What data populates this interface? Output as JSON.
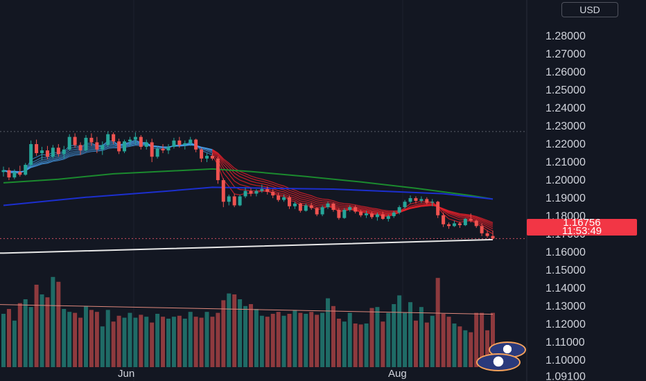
{
  "header": {
    "currency": "USD"
  },
  "price_label": {
    "price": "1.16756",
    "countdown": "11:53:49"
  },
  "time_axis": {
    "labels": [
      "Jun",
      "Aug"
    ]
  },
  "colors": {
    "background": "#131722",
    "bull": "#26a69a",
    "bear": "#ef5350",
    "volume_bull": "#1f6b66",
    "volume_bear": "#8e3a3e",
    "sma_long": "#1b8a2e",
    "sma_longest": "#1c2fcf",
    "baseline": "#e8e8e8",
    "price_label": "#f23645",
    "ribbon_up": "#4aa3f0",
    "ribbon_down": "#e8202a"
  },
  "chart_data": {
    "type": "candlestick",
    "instrument_currency": "USD",
    "y_axis": {
      "ylim": [
        1.0885,
        1.3
      ],
      "tick_labels": [
        "1.28000",
        "1.27000",
        "1.26000",
        "1.25000",
        "1.24000",
        "1.23000",
        "1.22000",
        "1.21000",
        "1.20000",
        "1.19000",
        "1.18000",
        "1.17000",
        "1.16000",
        "1.15000",
        "1.14000",
        "1.13000",
        "1.12000",
        "1.11000",
        "1.10000",
        "1.09100"
      ]
    },
    "x_axis": {
      "tick_labels": [
        "Jun",
        "Aug"
      ]
    },
    "grid": true,
    "dashed_level": 1.227,
    "last_price": 1.16756,
    "countdown": "11:53:49",
    "ohlc": [
      [
        1.2045,
        1.2075,
        1.202,
        1.2055
      ],
      [
        1.2055,
        1.207,
        1.2,
        1.2015
      ],
      [
        1.2015,
        1.206,
        1.2005,
        1.2045
      ],
      [
        1.2045,
        1.208,
        1.202,
        1.203
      ],
      [
        1.203,
        1.2095,
        1.2025,
        1.2085
      ],
      [
        1.2085,
        1.222,
        1.2075,
        1.22
      ],
      [
        1.22,
        1.2225,
        1.2135,
        1.215
      ],
      [
        1.215,
        1.2185,
        1.211,
        1.2165
      ],
      [
        1.2165,
        1.219,
        1.2115,
        1.213
      ],
      [
        1.213,
        1.2195,
        1.212,
        1.218
      ],
      [
        1.218,
        1.22,
        1.213,
        1.2145
      ],
      [
        1.2145,
        1.219,
        1.212,
        1.217
      ],
      [
        1.217,
        1.2255,
        1.2165,
        1.224
      ],
      [
        1.224,
        1.226,
        1.218,
        1.2195
      ],
      [
        1.2195,
        1.221,
        1.214,
        1.2165
      ],
      [
        1.2165,
        1.225,
        1.216,
        1.2235
      ],
      [
        1.2235,
        1.226,
        1.219,
        1.221
      ],
      [
        1.221,
        1.224,
        1.215,
        1.217
      ],
      [
        1.217,
        1.2215,
        1.214,
        1.2195
      ],
      [
        1.2195,
        1.227,
        1.2185,
        1.2255
      ],
      [
        1.2255,
        1.2265,
        1.22,
        1.2215
      ],
      [
        1.2215,
        1.223,
        1.2145,
        1.216
      ],
      [
        1.216,
        1.2225,
        1.215,
        1.2215
      ],
      [
        1.2215,
        1.224,
        1.219,
        1.2225
      ],
      [
        1.2225,
        1.2265,
        1.22,
        1.224
      ],
      [
        1.224,
        1.225,
        1.217,
        1.2185
      ],
      [
        1.2185,
        1.2225,
        1.217,
        1.221
      ],
      [
        1.221,
        1.223,
        1.21,
        1.213
      ],
      [
        1.213,
        1.219,
        1.212,
        1.2175
      ],
      [
        1.2175,
        1.22,
        1.215,
        1.2165
      ],
      [
        1.2165,
        1.22,
        1.2145,
        1.2185
      ],
      [
        1.2185,
        1.2235,
        1.2175,
        1.222
      ],
      [
        1.222,
        1.224,
        1.218,
        1.2195
      ],
      [
        1.2195,
        1.222,
        1.217,
        1.2205
      ],
      [
        1.2205,
        1.224,
        1.219,
        1.2225
      ],
      [
        1.2225,
        1.223,
        1.2155,
        1.217
      ],
      [
        1.217,
        1.218,
        1.21,
        1.212
      ],
      [
        1.212,
        1.215,
        1.21,
        1.2135
      ],
      [
        1.2135,
        1.215,
        1.211,
        1.212
      ],
      [
        1.212,
        1.213,
        1.198,
        1.2
      ],
      [
        1.2,
        1.201,
        1.185,
        1.188
      ],
      [
        1.188,
        1.192,
        1.186,
        1.191
      ],
      [
        1.191,
        1.1925,
        1.185,
        1.186
      ],
      [
        1.186,
        1.192,
        1.1855,
        1.191
      ],
      [
        1.191,
        1.196,
        1.19,
        1.194
      ],
      [
        1.194,
        1.1955,
        1.191,
        1.1925
      ],
      [
        1.1925,
        1.195,
        1.191,
        1.194
      ],
      [
        1.194,
        1.1975,
        1.193,
        1.195
      ],
      [
        1.195,
        1.1965,
        1.192,
        1.1935
      ],
      [
        1.1935,
        1.195,
        1.19,
        1.1915
      ],
      [
        1.1915,
        1.193,
        1.188,
        1.189
      ],
      [
        1.189,
        1.192,
        1.188,
        1.1905
      ],
      [
        1.1905,
        1.1915,
        1.184,
        1.1855
      ],
      [
        1.1855,
        1.188,
        1.184,
        1.187
      ],
      [
        1.187,
        1.1875,
        1.182,
        1.183
      ],
      [
        1.183,
        1.187,
        1.1825,
        1.186
      ],
      [
        1.186,
        1.1875,
        1.1835,
        1.1845
      ],
      [
        1.1845,
        1.185,
        1.18,
        1.181
      ],
      [
        1.181,
        1.186,
        1.18,
        1.185
      ],
      [
        1.185,
        1.188,
        1.184,
        1.187
      ],
      [
        1.187,
        1.1875,
        1.1825,
        1.1835
      ],
      [
        1.1835,
        1.1845,
        1.178,
        1.179
      ],
      [
        1.179,
        1.1845,
        1.1785,
        1.1835
      ],
      [
        1.1835,
        1.186,
        1.1825,
        1.185
      ],
      [
        1.185,
        1.186,
        1.1815,
        1.1825
      ],
      [
        1.1825,
        1.1835,
        1.1795,
        1.1805
      ],
      [
        1.1805,
        1.183,
        1.179,
        1.1815
      ],
      [
        1.1815,
        1.1825,
        1.1785,
        1.1795
      ],
      [
        1.1795,
        1.182,
        1.1775,
        1.181
      ],
      [
        1.181,
        1.1825,
        1.178,
        1.1785
      ],
      [
        1.1785,
        1.181,
        1.177,
        1.18
      ],
      [
        1.18,
        1.183,
        1.179,
        1.182
      ],
      [
        1.182,
        1.186,
        1.181,
        1.185
      ],
      [
        1.185,
        1.189,
        1.184,
        1.188
      ],
      [
        1.188,
        1.1915,
        1.187,
        1.19
      ],
      [
        1.19,
        1.191,
        1.187,
        1.1885
      ],
      [
        1.1885,
        1.191,
        1.1875,
        1.1895
      ],
      [
        1.1895,
        1.1905,
        1.1865,
        1.1875
      ],
      [
        1.1875,
        1.1895,
        1.1855,
        1.188
      ],
      [
        1.188,
        1.1885,
        1.179,
        1.1805
      ],
      [
        1.1805,
        1.182,
        1.174,
        1.1755
      ],
      [
        1.1755,
        1.1765,
        1.173,
        1.1745
      ],
      [
        1.1745,
        1.1775,
        1.174,
        1.176
      ],
      [
        1.176,
        1.177,
        1.1735,
        1.175
      ],
      [
        1.175,
        1.179,
        1.1745,
        1.1785
      ],
      [
        1.1785,
        1.1815,
        1.1765,
        1.1775
      ],
      [
        1.1775,
        1.178,
        1.1735,
        1.1745
      ],
      [
        1.1745,
        1.176,
        1.169,
        1.1705
      ],
      [
        1.1705,
        1.172,
        1.168,
        1.169
      ],
      [
        1.169,
        1.172,
        1.167,
        1.1676
      ]
    ],
    "volume": {
      "ylim": [
        0,
        1
      ],
      "values": [
        0.55,
        0.6,
        0.48,
        0.66,
        0.7,
        0.62,
        0.85,
        0.75,
        0.72,
        0.93,
        0.88,
        0.6,
        0.57,
        0.56,
        0.51,
        0.63,
        0.59,
        0.57,
        0.42,
        0.59,
        0.47,
        0.53,
        0.51,
        0.56,
        0.51,
        0.54,
        0.52,
        0.46,
        0.55,
        0.52,
        0.5,
        0.52,
        0.53,
        0.5,
        0.57,
        0.52,
        0.51,
        0.57,
        0.52,
        0.56,
        0.69,
        0.76,
        0.75,
        0.7,
        0.63,
        0.65,
        0.6,
        0.53,
        0.52,
        0.55,
        0.57,
        0.53,
        0.55,
        0.59,
        0.56,
        0.55,
        0.57,
        0.54,
        0.56,
        0.71,
        0.63,
        0.5,
        0.47,
        0.56,
        0.45,
        0.44,
        0.45,
        0.61,
        0.62,
        0.47,
        0.56,
        0.65,
        0.74,
        0.56,
        0.67,
        0.48,
        0.62,
        0.46,
        0.53,
        0.92,
        0.55,
        0.52,
        0.45,
        0.42,
        0.38,
        0.36,
        0.56,
        0.56,
        0.38,
        0.56
      ],
      "moving_average": 0.56
    },
    "sma_long": [
      [
        0,
        1.1985
      ],
      [
        10,
        1.2005
      ],
      [
        20,
        1.2035
      ],
      [
        30,
        1.205
      ],
      [
        38,
        1.2062
      ],
      [
        45,
        1.2048
      ],
      [
        55,
        1.202
      ],
      [
        65,
        1.199
      ],
      [
        75,
        1.1955
      ],
      [
        85,
        1.1915
      ],
      [
        89,
        1.1895
      ]
    ],
    "sma_longest": [
      [
        0,
        1.186
      ],
      [
        15,
        1.1905
      ],
      [
        30,
        1.194
      ],
      [
        38,
        1.196
      ],
      [
        48,
        1.1955
      ],
      [
        60,
        1.195
      ],
      [
        72,
        1.1935
      ],
      [
        80,
        1.1925
      ],
      [
        89,
        1.1895
      ]
    ],
    "baseline": [
      [
        0,
        1.1595
      ],
      [
        30,
        1.162
      ],
      [
        60,
        1.1645
      ],
      [
        89,
        1.167
      ]
    ]
  }
}
